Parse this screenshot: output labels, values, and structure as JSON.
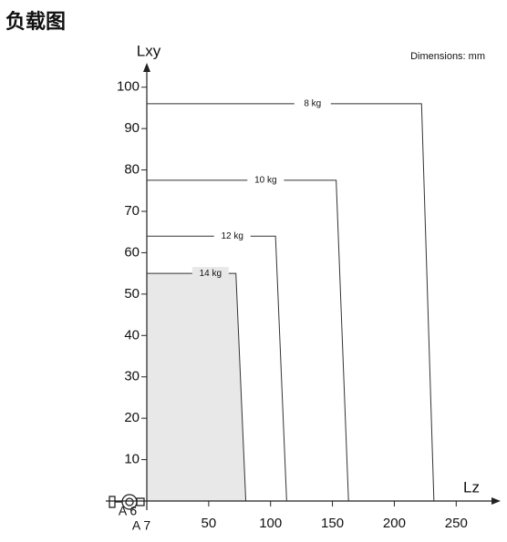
{
  "chart_data": {
    "type": "load-diagram",
    "title": "负载图",
    "note": "Dimensions: mm",
    "x_label": "Lz",
    "y_label": "Lxy",
    "annotations": [
      "A 6",
      "A 7"
    ],
    "xlim": [
      0,
      280
    ],
    "xticks": [
      50,
      100,
      150,
      200,
      250
    ],
    "ylim": [
      0,
      105
    ],
    "yticks": [
      10,
      20,
      30,
      40,
      50,
      60,
      70,
      80,
      90,
      100
    ],
    "line_color": "#333333",
    "series": [
      {
        "name": "8 kg",
        "x": [
          0,
          222,
          232
        ],
        "values": [
          96,
          96,
          0
        ]
      },
      {
        "name": "10 kg",
        "x": [
          0,
          153,
          163
        ],
        "values": [
          77.5,
          77.5,
          0
        ]
      },
      {
        "name": "12 kg",
        "x": [
          0,
          104,
          113
        ],
        "values": [
          64,
          64,
          0
        ]
      },
      {
        "name": "14 kg",
        "x": [
          0,
          72,
          80
        ],
        "values": [
          55,
          55,
          0
        ],
        "fill": "#e8e8e8"
      }
    ]
  }
}
